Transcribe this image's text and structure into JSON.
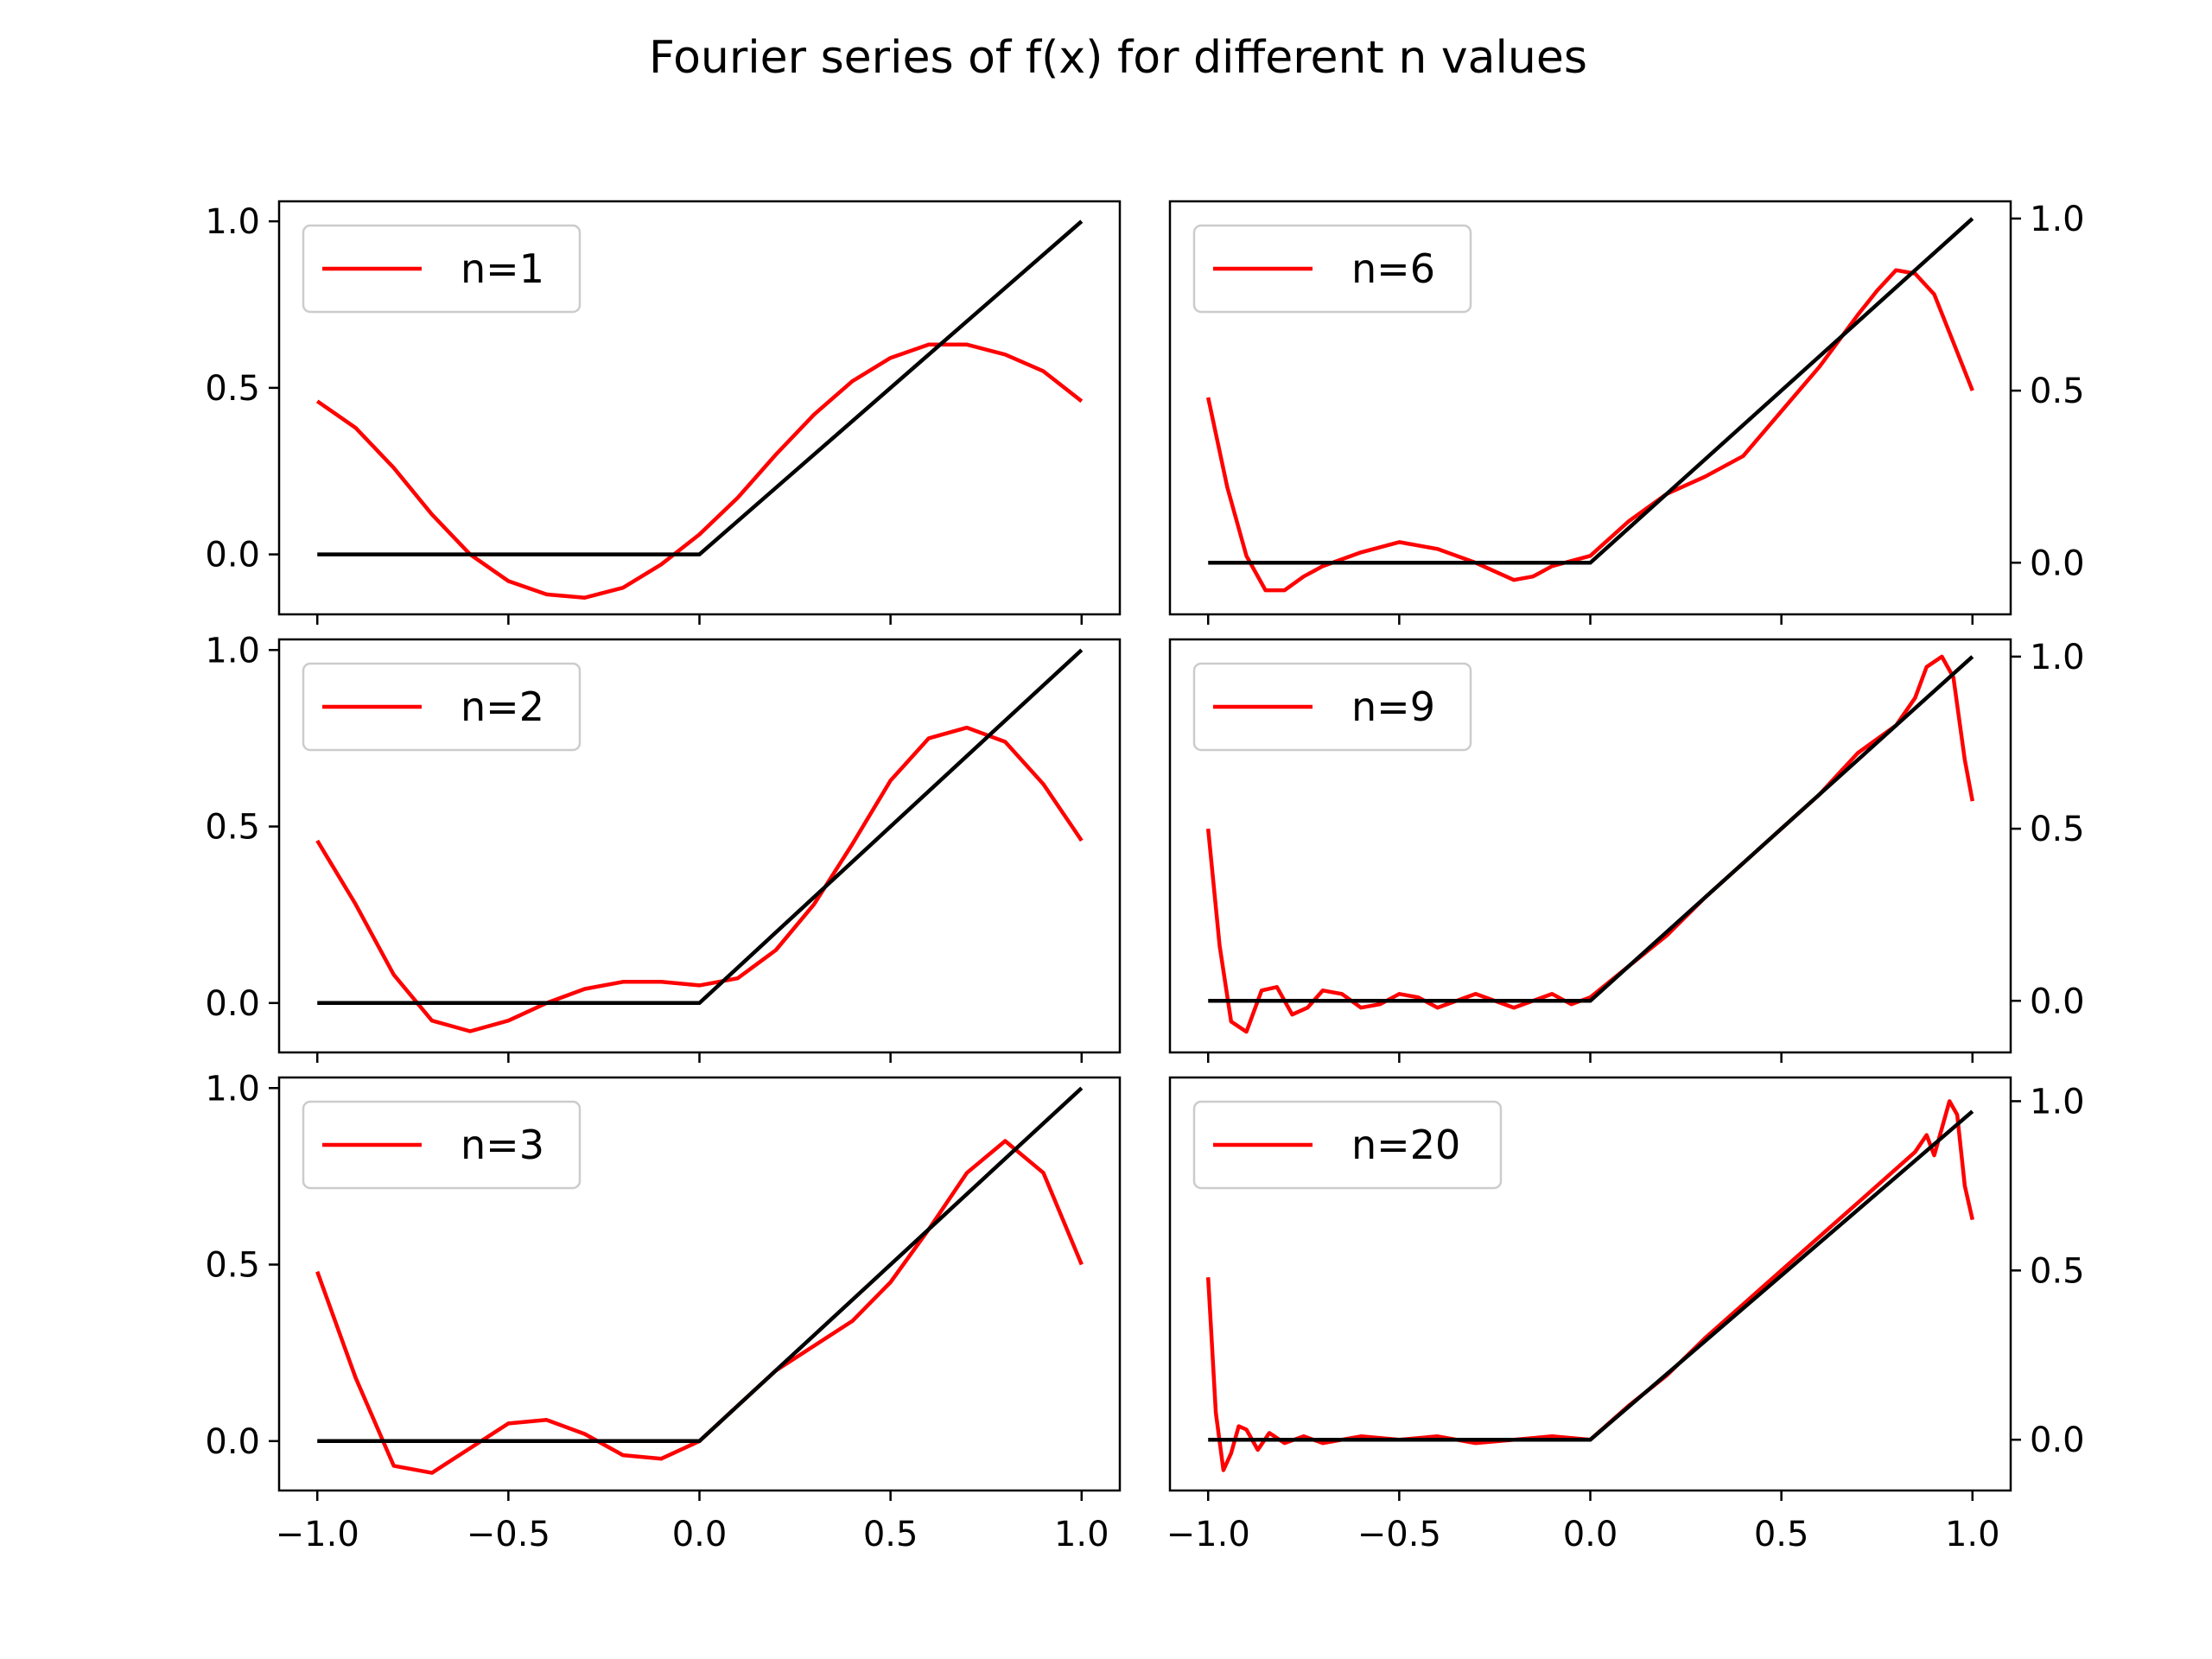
{
  "title": "Fourier series of f(x) for different n values",
  "colors": {
    "series": "#ff0000",
    "reference": "#000000"
  },
  "chart_data": [
    {
      "type": "line",
      "panel": "top-left",
      "legend": "n=1",
      "legend_position": "upper-left",
      "xlim": [
        -1.1,
        1.1
      ],
      "ylim": [
        -0.18,
        1.06
      ],
      "xticks": [
        "−1.0",
        "−0.5",
        "0.0",
        "0.5",
        "1.0"
      ],
      "xtick_values": [
        -1,
        -0.5,
        0,
        0.5,
        1
      ],
      "show_xtick_labels": false,
      "yticks": [
        "0.0",
        "0.5",
        "1.0"
      ],
      "ytick_values": [
        0,
        0.5,
        1
      ],
      "ytick_side": "left",
      "series": [
        {
          "name": "n=1",
          "x": [
            -1.0,
            -0.9,
            -0.8,
            -0.7,
            -0.6,
            -0.5,
            -0.4,
            -0.3,
            -0.2,
            -0.1,
            0.0,
            0.1,
            0.2,
            0.3,
            0.4,
            0.5,
            0.6,
            0.7,
            0.8,
            0.9,
            1.0
          ],
          "y": [
            0.46,
            0.38,
            0.26,
            0.12,
            0.0,
            -0.08,
            -0.12,
            -0.13,
            -0.1,
            -0.03,
            0.06,
            0.17,
            0.3,
            0.42,
            0.52,
            0.59,
            0.63,
            0.63,
            0.6,
            0.55,
            0.46
          ]
        }
      ],
      "reference": {
        "x": [
          -1,
          0,
          1
        ],
        "y": [
          0,
          0,
          1
        ]
      }
    },
    {
      "type": "line",
      "panel": "middle-left",
      "legend": "n=2",
      "legend_position": "upper-left",
      "xlim": [
        -1.1,
        1.1
      ],
      "ylim": [
        -0.14,
        1.03
      ],
      "xticks": [
        "−1.0",
        "−0.5",
        "0.0",
        "0.5",
        "1.0"
      ],
      "xtick_values": [
        -1,
        -0.5,
        0,
        0.5,
        1
      ],
      "show_xtick_labels": false,
      "yticks": [
        "0.0",
        "0.5",
        "1.0"
      ],
      "ytick_values": [
        0,
        0.5,
        1
      ],
      "ytick_side": "left",
      "series": [
        {
          "name": "n=2",
          "x": [
            -1.0,
            -0.9,
            -0.8,
            -0.7,
            -0.6,
            -0.5,
            -0.4,
            -0.3,
            -0.2,
            -0.1,
            0.0,
            0.1,
            0.2,
            0.3,
            0.4,
            0.5,
            0.6,
            0.7,
            0.8,
            0.9,
            1.0
          ],
          "y": [
            0.46,
            0.28,
            0.08,
            -0.05,
            -0.08,
            -0.05,
            0.0,
            0.04,
            0.06,
            0.06,
            0.05,
            0.07,
            0.15,
            0.28,
            0.45,
            0.63,
            0.75,
            0.78,
            0.74,
            0.62,
            0.46
          ]
        }
      ],
      "reference": {
        "x": [
          -1,
          0,
          1
        ],
        "y": [
          0,
          0,
          1
        ]
      }
    },
    {
      "type": "line",
      "panel": "bottom-left",
      "legend": "n=3",
      "legend_position": "upper-left",
      "xlim": [
        -1.1,
        1.1
      ],
      "ylim": [
        -0.14,
        1.03
      ],
      "xticks": [
        "−1.0",
        "−0.5",
        "0.0",
        "0.5",
        "1.0"
      ],
      "xtick_values": [
        -1,
        -0.5,
        0,
        0.5,
        1
      ],
      "show_xtick_labels": true,
      "yticks": [
        "0.0",
        "0.5",
        "1.0"
      ],
      "ytick_values": [
        0,
        0.5,
        1
      ],
      "ytick_side": "left",
      "series": [
        {
          "name": "n=3",
          "x": [
            -1.0,
            -0.9,
            -0.8,
            -0.7,
            -0.6,
            -0.5,
            -0.4,
            -0.3,
            -0.2,
            -0.1,
            0.0,
            0.1,
            0.2,
            0.3,
            0.4,
            0.5,
            0.6,
            0.7,
            0.8,
            0.9,
            1.0
          ],
          "y": [
            0.48,
            0.18,
            -0.07,
            -0.09,
            -0.02,
            0.05,
            0.06,
            0.02,
            -0.04,
            -0.05,
            0.0,
            0.1,
            0.2,
            0.27,
            0.34,
            0.45,
            0.6,
            0.76,
            0.85,
            0.76,
            0.5
          ]
        }
      ],
      "reference": {
        "x": [
          -1,
          0,
          1
        ],
        "y": [
          0,
          0,
          1
        ]
      }
    },
    {
      "type": "line",
      "panel": "top-right",
      "legend": "n=6",
      "legend_position": "upper-left",
      "xlim": [
        -1.1,
        1.1
      ],
      "ylim": [
        -0.15,
        1.05
      ],
      "xticks": [
        "−1.0",
        "−0.5",
        "0.0",
        "0.5",
        "1.0"
      ],
      "xtick_values": [
        -1,
        -0.5,
        0,
        0.5,
        1
      ],
      "show_xtick_labels": false,
      "yticks": [
        "0.0",
        "0.5",
        "1.0"
      ],
      "ytick_values": [
        0,
        0.5,
        1
      ],
      "ytick_side": "right",
      "series": [
        {
          "name": "n=6",
          "x": [
            -1.0,
            -0.95,
            -0.9,
            -0.85,
            -0.8,
            -0.75,
            -0.7,
            -0.6,
            -0.5,
            -0.4,
            -0.3,
            -0.2,
            -0.15,
            -0.1,
            0.0,
            0.1,
            0.2,
            0.3,
            0.4,
            0.5,
            0.6,
            0.7,
            0.75,
            0.8,
            0.85,
            0.9,
            0.95,
            1.0
          ],
          "y": [
            0.48,
            0.22,
            0.02,
            -0.08,
            -0.08,
            -0.04,
            -0.01,
            0.03,
            0.06,
            0.04,
            0.0,
            -0.05,
            -0.04,
            -0.01,
            0.02,
            0.12,
            0.2,
            0.25,
            0.31,
            0.44,
            0.57,
            0.72,
            0.79,
            0.85,
            0.84,
            0.78,
            0.64,
            0.5
          ]
        }
      ],
      "reference": {
        "x": [
          -1,
          0,
          1
        ],
        "y": [
          0,
          0,
          1
        ]
      }
    },
    {
      "type": "line",
      "panel": "middle-right",
      "legend": "n=9",
      "legend_position": "upper-left",
      "xlim": [
        -1.1,
        1.1
      ],
      "ylim": [
        -0.15,
        1.05
      ],
      "xticks": [
        "−1.0",
        "−0.5",
        "0.0",
        "0.5",
        "1.0"
      ],
      "xtick_values": [
        -1,
        -0.5,
        0,
        0.5,
        1
      ],
      "show_xtick_labels": false,
      "yticks": [
        "0.0",
        "0.5",
        "1.0"
      ],
      "ytick_values": [
        0,
        0.5,
        1
      ],
      "ytick_side": "right",
      "series": [
        {
          "name": "n=9",
          "x": [
            -1.0,
            -0.97,
            -0.94,
            -0.9,
            -0.86,
            -0.82,
            -0.78,
            -0.74,
            -0.7,
            -0.65,
            -0.6,
            -0.55,
            -0.5,
            -0.45,
            -0.4,
            -0.35,
            -0.3,
            -0.25,
            -0.2,
            -0.15,
            -0.1,
            -0.05,
            0.0,
            0.1,
            0.2,
            0.3,
            0.4,
            0.5,
            0.6,
            0.65,
            0.7,
            0.75,
            0.8,
            0.85,
            0.88,
            0.92,
            0.95,
            0.98,
            1.0
          ],
          "y": [
            0.5,
            0.16,
            -0.06,
            -0.09,
            0.03,
            0.04,
            -0.04,
            -0.02,
            0.03,
            0.02,
            -0.02,
            -0.01,
            0.02,
            0.01,
            -0.02,
            0.0,
            0.02,
            0.0,
            -0.02,
            0.0,
            0.02,
            -0.01,
            0.01,
            0.1,
            0.19,
            0.3,
            0.4,
            0.5,
            0.6,
            0.66,
            0.72,
            0.76,
            0.8,
            0.88,
            0.97,
            1.0,
            0.94,
            0.7,
            0.58
          ]
        }
      ],
      "reference": {
        "x": [
          -1,
          0,
          1
        ],
        "y": [
          0,
          0,
          1
        ]
      }
    },
    {
      "type": "line",
      "panel": "bottom-right",
      "legend": "n=20",
      "legend_position": "upper-left",
      "xlim": [
        -1.1,
        1.1
      ],
      "ylim": [
        -0.15,
        1.07
      ],
      "xticks": [
        "−1.0",
        "−0.5",
        "0.0",
        "0.5",
        "1.0"
      ],
      "xtick_values": [
        -1,
        -0.5,
        0,
        0.5,
        1
      ],
      "show_xtick_labels": true,
      "yticks": [
        "0.0",
        "0.5",
        "1.0"
      ],
      "ytick_values": [
        0,
        0.5,
        1
      ],
      "ytick_side": "right",
      "series": [
        {
          "name": "n=20",
          "x": [
            -1.0,
            -0.98,
            -0.96,
            -0.94,
            -0.92,
            -0.9,
            -0.87,
            -0.84,
            -0.8,
            -0.75,
            -0.7,
            -0.6,
            -0.5,
            -0.4,
            -0.3,
            -0.2,
            -0.1,
            0.0,
            0.1,
            0.2,
            0.3,
            0.4,
            0.5,
            0.6,
            0.7,
            0.8,
            0.85,
            0.88,
            0.9,
            0.92,
            0.94,
            0.96,
            0.98,
            1.0
          ],
          "y": [
            0.48,
            0.08,
            -0.09,
            -0.04,
            0.04,
            0.03,
            -0.03,
            0.02,
            -0.01,
            0.01,
            -0.01,
            0.01,
            0.0,
            0.01,
            -0.01,
            0.0,
            0.01,
            0.0,
            0.1,
            0.19,
            0.3,
            0.4,
            0.5,
            0.6,
            0.7,
            0.8,
            0.85,
            0.9,
            0.84,
            0.92,
            1.0,
            0.96,
            0.75,
            0.65
          ]
        }
      ],
      "reference": {
        "x": [
          -1,
          0,
          1
        ],
        "y": [
          0,
          0,
          0.97
        ]
      }
    }
  ]
}
